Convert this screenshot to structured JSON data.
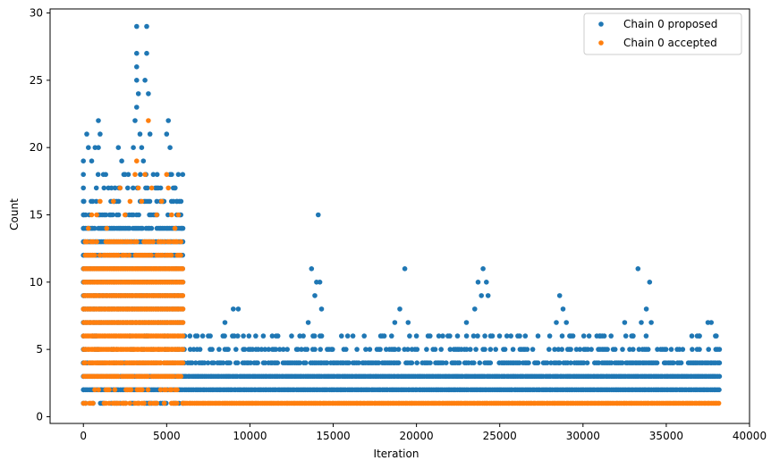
{
  "chart_data": {
    "type": "scatter",
    "title": "",
    "xlabel": "Iteration",
    "ylabel": "Count",
    "xlim": [
      -2000,
      40000
    ],
    "ylim": [
      -0.5,
      30.3
    ],
    "x_ticks": [
      0,
      5000,
      10000,
      15000,
      20000,
      25000,
      30000,
      35000,
      40000
    ],
    "y_ticks": [
      0,
      5,
      10,
      15,
      20,
      25,
      30
    ],
    "x_tick_labels": [
      "0",
      "5000",
      "10000",
      "15000",
      "20000",
      "25000",
      "30000",
      "35000",
      "40000"
    ],
    "y_tick_labels": [
      "0",
      "5",
      "10",
      "15",
      "20",
      "25",
      "30"
    ],
    "grid": false,
    "legend_position": "top-right",
    "series": [
      {
        "name": "Chain 0 proposed",
        "color": "#1f77b4",
        "points": [
          [
            0,
            1
          ],
          [
            0,
            2
          ],
          [
            0,
            3
          ],
          [
            0,
            4
          ],
          [
            0,
            5
          ],
          [
            0,
            6
          ],
          [
            0,
            7
          ],
          [
            0,
            8
          ],
          [
            0,
            9
          ],
          [
            0,
            10
          ],
          [
            0,
            11
          ],
          [
            0,
            12
          ],
          [
            0,
            13
          ],
          [
            0,
            14
          ],
          [
            0,
            15
          ],
          [
            0,
            16
          ],
          [
            0,
            17
          ],
          [
            0,
            18
          ],
          [
            0,
            19
          ],
          [
            200,
            21
          ],
          [
            300,
            20
          ],
          [
            500,
            19
          ],
          [
            700,
            20
          ],
          [
            900,
            20
          ],
          [
            900,
            22
          ],
          [
            1000,
            21
          ],
          [
            1200,
            18
          ],
          [
            1500,
            17
          ],
          [
            1800,
            16
          ],
          [
            2100,
            20
          ],
          [
            2300,
            19
          ],
          [
            2500,
            18
          ],
          [
            2700,
            18
          ],
          [
            3000,
            20
          ],
          [
            3100,
            22
          ],
          [
            3200,
            23
          ],
          [
            3200,
            29
          ],
          [
            3200,
            27
          ],
          [
            3200,
            26
          ],
          [
            3200,
            25
          ],
          [
            3300,
            24
          ],
          [
            3400,
            21
          ],
          [
            3500,
            20
          ],
          [
            3600,
            19
          ],
          [
            3700,
            25
          ],
          [
            3800,
            27
          ],
          [
            3800,
            29
          ],
          [
            3900,
            24
          ],
          [
            4000,
            21
          ],
          [
            4200,
            18
          ],
          [
            4500,
            17
          ],
          [
            4800,
            16
          ],
          [
            5000,
            21
          ],
          [
            5100,
            22
          ],
          [
            5200,
            20
          ],
          [
            5300,
            18
          ],
          [
            5500,
            17
          ],
          [
            5600,
            16
          ],
          [
            5700,
            18
          ],
          [
            5800,
            15
          ],
          [
            5900,
            14
          ],
          [
            7000,
            5
          ],
          [
            7500,
            6
          ],
          [
            8500,
            7
          ],
          [
            9000,
            8
          ],
          [
            9300,
            8
          ],
          [
            10500,
            5
          ],
          [
            12500,
            6
          ],
          [
            13500,
            7
          ],
          [
            13700,
            11
          ],
          [
            13900,
            9
          ],
          [
            14000,
            10
          ],
          [
            14100,
            15
          ],
          [
            14200,
            10
          ],
          [
            14300,
            8
          ],
          [
            15500,
            6
          ],
          [
            18700,
            7
          ],
          [
            19000,
            8
          ],
          [
            19300,
            11
          ],
          [
            19500,
            7
          ],
          [
            20000,
            6
          ],
          [
            21000,
            5
          ],
          [
            22000,
            6
          ],
          [
            23000,
            7
          ],
          [
            23500,
            8
          ],
          [
            23700,
            10
          ],
          [
            23900,
            9
          ],
          [
            24000,
            11
          ],
          [
            24200,
            10
          ],
          [
            24300,
            9
          ],
          [
            25800,
            5
          ],
          [
            28000,
            6
          ],
          [
            28400,
            7
          ],
          [
            28600,
            9
          ],
          [
            28800,
            8
          ],
          [
            29000,
            7
          ],
          [
            29200,
            6
          ],
          [
            31000,
            6
          ],
          [
            32500,
            7
          ],
          [
            33000,
            6
          ],
          [
            33300,
            11
          ],
          [
            33500,
            7
          ],
          [
            33800,
            8
          ],
          [
            34000,
            10
          ],
          [
            34100,
            7
          ],
          [
            35300,
            5
          ],
          [
            37000,
            6
          ],
          [
            37500,
            7
          ],
          [
            37700,
            7
          ],
          [
            38000,
            6
          ]
        ],
        "bands": [
          {
            "y": 1,
            "x_from": 0,
            "x_to": 6000,
            "density": 0.5
          },
          {
            "y": 2,
            "x_from": 0,
            "x_to": 38200,
            "density": 1.0
          },
          {
            "y": 3,
            "x_from": 0,
            "x_to": 38200,
            "density": 1.0
          },
          {
            "y": 4,
            "x_from": 0,
            "x_to": 38200,
            "density": 0.75
          },
          {
            "y": 5,
            "x_from": 0,
            "x_to": 38200,
            "density": 0.45
          },
          {
            "y": 6,
            "x_from": 0,
            "x_to": 38200,
            "density": 0.25
          },
          {
            "y": 7,
            "x_from": 0,
            "x_to": 6000,
            "density": 1.0
          },
          {
            "y": 8,
            "x_from": 0,
            "x_to": 6000,
            "density": 1.0
          },
          {
            "y": 9,
            "x_from": 0,
            "x_to": 6000,
            "density": 1.0
          },
          {
            "y": 10,
            "x_from": 0,
            "x_to": 6000,
            "density": 1.0
          },
          {
            "y": 11,
            "x_from": 0,
            "x_to": 6000,
            "density": 1.0
          },
          {
            "y": 12,
            "x_from": 0,
            "x_to": 6000,
            "density": 1.0
          },
          {
            "y": 13,
            "x_from": 0,
            "x_to": 6000,
            "density": 1.0
          },
          {
            "y": 14,
            "x_from": 0,
            "x_to": 6000,
            "density": 0.8
          },
          {
            "y": 15,
            "x_from": 0,
            "x_to": 6000,
            "density": 0.6
          },
          {
            "y": 16,
            "x_from": 0,
            "x_to": 6000,
            "density": 0.4
          },
          {
            "y": 17,
            "x_from": 0,
            "x_to": 6000,
            "density": 0.25
          },
          {
            "y": 18,
            "x_from": 0,
            "x_to": 6000,
            "density": 0.15
          }
        ]
      },
      {
        "name": "Chain 0 accepted",
        "color": "#ff7f0e",
        "points": [
          [
            300,
            14
          ],
          [
            500,
            15
          ],
          [
            800,
            15
          ],
          [
            1000,
            16
          ],
          [
            1400,
            14
          ],
          [
            1800,
            16
          ],
          [
            2200,
            17
          ],
          [
            2500,
            15
          ],
          [
            2800,
            16
          ],
          [
            3100,
            18
          ],
          [
            3200,
            19
          ],
          [
            3300,
            17
          ],
          [
            3500,
            16
          ],
          [
            3700,
            18
          ],
          [
            3900,
            22
          ],
          [
            4100,
            17
          ],
          [
            4400,
            15
          ],
          [
            4700,
            16
          ],
          [
            5000,
            18
          ],
          [
            5100,
            17
          ],
          [
            5300,
            15
          ],
          [
            5500,
            14
          ],
          [
            5700,
            15
          ]
        ],
        "bands": [
          {
            "y": 1,
            "x_from": 0,
            "x_to": 6000,
            "density": 0.55
          },
          {
            "y": 1,
            "x_from": 6000,
            "x_to": 38200,
            "density": 1.0
          },
          {
            "y": 2,
            "x_from": 0,
            "x_to": 6000,
            "density": 0.5
          },
          {
            "y": 3,
            "x_from": 0,
            "x_to": 6000,
            "density": 0.9
          },
          {
            "y": 4,
            "x_from": 0,
            "x_to": 6000,
            "density": 0.9
          },
          {
            "y": 5,
            "x_from": 0,
            "x_to": 6000,
            "density": 1.0
          },
          {
            "y": 6,
            "x_from": 0,
            "x_to": 6000,
            "density": 1.0
          },
          {
            "y": 7,
            "x_from": 0,
            "x_to": 6000,
            "density": 1.0
          },
          {
            "y": 8,
            "x_from": 0,
            "x_to": 6000,
            "density": 1.0
          },
          {
            "y": 9,
            "x_from": 0,
            "x_to": 6000,
            "density": 1.0
          },
          {
            "y": 10,
            "x_from": 0,
            "x_to": 6000,
            "density": 1.0
          },
          {
            "y": 11,
            "x_from": 0,
            "x_to": 6000,
            "density": 1.0
          },
          {
            "y": 12,
            "x_from": 0,
            "x_to": 6000,
            "density": 0.8
          },
          {
            "y": 13,
            "x_from": 0,
            "x_to": 6000,
            "density": 0.55
          }
        ]
      }
    ]
  }
}
